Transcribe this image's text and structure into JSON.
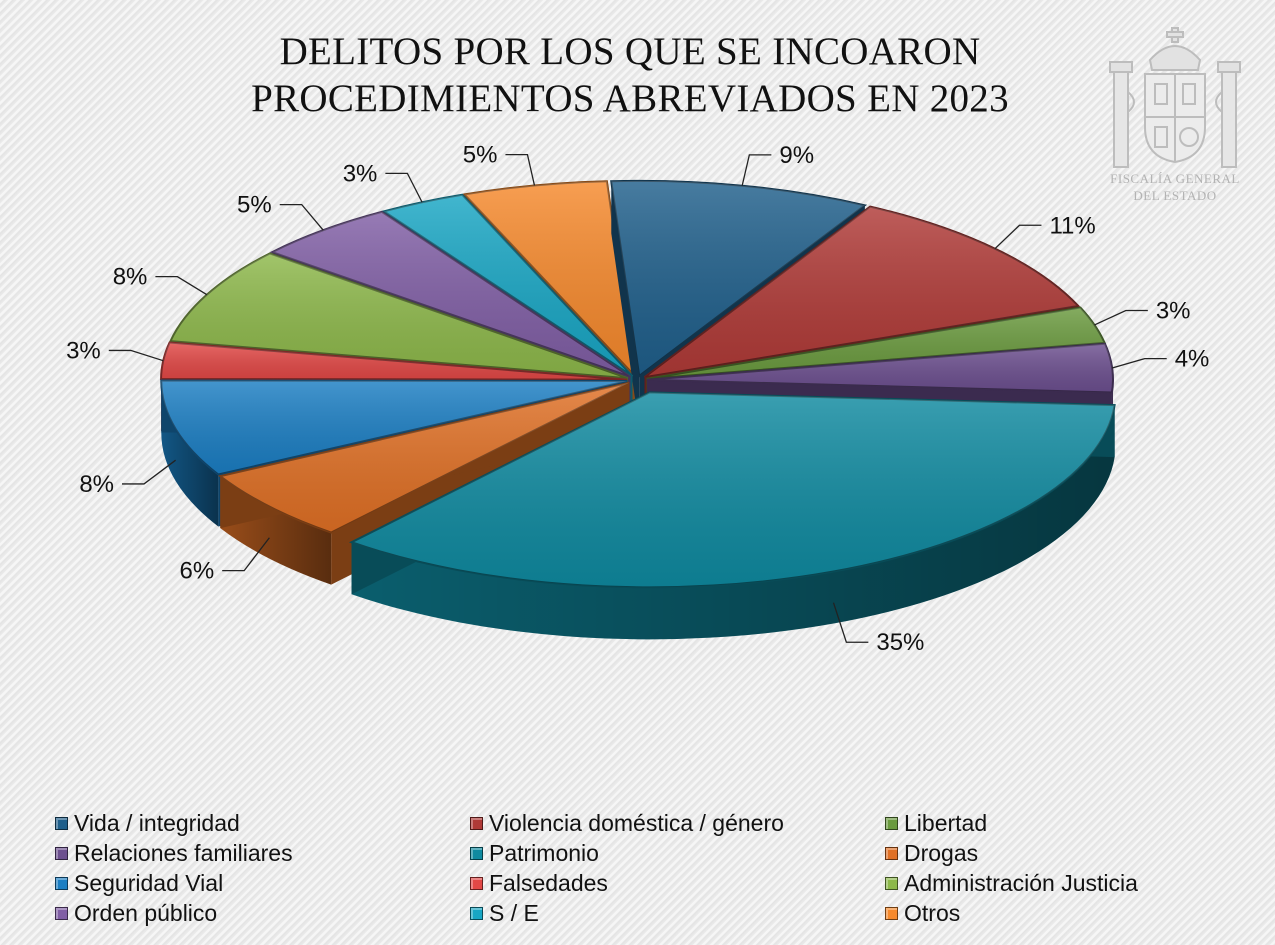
{
  "chart_data": {
    "type": "pie",
    "title": [
      "DELITOS POR LOS QUE SE INCOARON",
      "PROCEDIMIENTOS ABREVIADOS EN 2023"
    ],
    "unit": "%",
    "slices": [
      {
        "name": "Vida / integridad",
        "value": 9,
        "label": "9%",
        "color": "#1f5f8b"
      },
      {
        "name": "Violencia doméstica / género",
        "value": 11,
        "label": "11%",
        "color": "#b03a37"
      },
      {
        "name": "Libertad",
        "value": 3,
        "label": "3%",
        "color": "#6a9a3e"
      },
      {
        "name": "Relaciones familiares",
        "value": 4,
        "label": "4%",
        "color": "#6c4f8f"
      },
      {
        "name": "Patrimonio",
        "value": 35,
        "label": "35%",
        "color": "#0f8aa0"
      },
      {
        "name": "Drogas",
        "value": 6,
        "label": "6%",
        "color": "#e07025"
      },
      {
        "name": "Seguridad Vial",
        "value": 8,
        "label": "8%",
        "color": "#1b7ec3"
      },
      {
        "name": "Falsedades",
        "value": 3,
        "label": "3%",
        "color": "#e24846"
      },
      {
        "name": "Administración Justicia",
        "value": 8,
        "label": "8%",
        "color": "#8db84a"
      },
      {
        "name": "Orden público",
        "value": 5,
        "label": "5%",
        "color": "#805ea5"
      },
      {
        "name": "S / E",
        "value": 3,
        "label": "3%",
        "color": "#18a6c4"
      },
      {
        "name": "Otros",
        "value": 5,
        "label": "5%",
        "color": "#f6892c"
      }
    ],
    "legend_position": "bottom"
  },
  "emblem": {
    "line1": "FISCALÍA GENERAL",
    "line2": "DEL ESTADO"
  }
}
